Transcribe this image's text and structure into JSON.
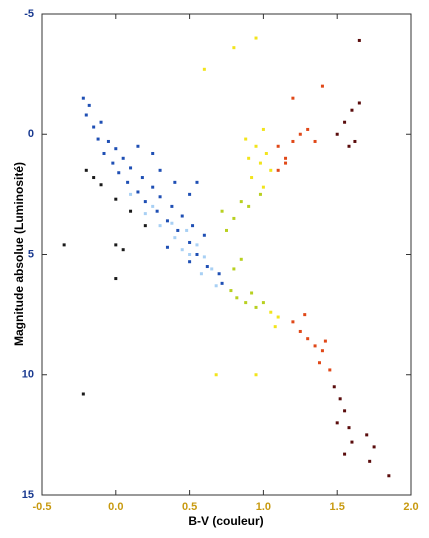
{
  "chart_data": {
    "type": "scatter",
    "x_label": "B-V (couleur)",
    "y_label": "Magnitude absolue (Luminosité)",
    "xlim": [
      -0.5,
      2.0
    ],
    "xticks": [
      -0.5,
      {
        "value": 0,
        "label": "0.0"
      },
      0.5,
      {
        "value": 1,
        "label": "1.0"
      },
      1.5,
      {
        "value": 2,
        "label": "2.0"
      }
    ],
    "ylim": [
      -5,
      15
    ],
    "yticks": [
      -5,
      0,
      5,
      10,
      15
    ],
    "y_reversed": true,
    "series": [
      {
        "color": "#1f4fb4",
        "x": [
          -0.22,
          -0.2,
          -0.18,
          -0.15,
          -0.12,
          -0.1,
          -0.08,
          -0.05,
          -0.02,
          0,
          0.02,
          0.05,
          0.08,
          0.1,
          0.15,
          0.18,
          0.2,
          0.25,
          0.28,
          0.3,
          0.35,
          0.38,
          0.42,
          0.45,
          0.5,
          0.52,
          0.55,
          0.6,
          0.62,
          0.5,
          0.35,
          0.7,
          0.72,
          0.25,
          0.15,
          0.3,
          0.4,
          0.5,
          0.55
        ],
        "values": [
          -1.5,
          -0.8,
          -1.2,
          -0.3,
          0.2,
          -0.5,
          0.8,
          0.3,
          1.2,
          0.6,
          1.6,
          1.0,
          2.0,
          1.4,
          2.4,
          1.8,
          2.8,
          2.2,
          3.2,
          2.6,
          3.6,
          3.0,
          4.0,
          3.4,
          4.5,
          3.8,
          5.0,
          4.2,
          5.5,
          5.3,
          4.7,
          5.8,
          6.2,
          0.8,
          0.5,
          1.5,
          2.0,
          2.5,
          2.0
        ]
      },
      {
        "color": "#a8d0f4",
        "x": [
          0.1,
          0.2,
          0.3,
          0.4,
          0.45,
          0.5,
          0.55,
          0.6,
          0.65,
          0.38,
          0.25,
          0.48,
          0.58,
          0.68
        ],
        "values": [
          2.5,
          3.3,
          3.8,
          4.3,
          4.8,
          5.0,
          4.6,
          5.1,
          5.6,
          3.7,
          3.0,
          4.0,
          5.8,
          6.3
        ]
      },
      {
        "color": "#1a1a1a",
        "x": [
          -0.2,
          -0.15,
          -0.1,
          0.0,
          0.1,
          0.05,
          0.0,
          0.0,
          -0.35,
          -0.22,
          0.2
        ],
        "values": [
          1.5,
          1.8,
          2.1,
          2.7,
          3.2,
          4.8,
          4.6,
          6.0,
          4.6,
          10.8,
          3.8
        ]
      },
      {
        "color": "#b8d020",
        "x": [
          0.75,
          0.8,
          0.78,
          0.82,
          0.85,
          0.88,
          0.9,
          0.92,
          0.95,
          0.98,
          1.0,
          0.85,
          0.8,
          0.72
        ],
        "values": [
          4.0,
          3.5,
          6.5,
          6.8,
          2.8,
          7.0,
          3.0,
          6.6,
          7.2,
          2.5,
          7.0,
          5.2,
          5.6,
          3.2
        ]
      },
      {
        "color": "#f2e41c",
        "x": [
          0.9,
          0.95,
          1.0,
          0.92,
          1.02,
          1.05,
          0.98,
          1.05,
          1.1,
          1.08,
          0.95,
          0.6,
          0.8,
          0.68,
          0.95,
          1.0,
          0.88
        ],
        "values": [
          1.0,
          0.5,
          -0.2,
          1.8,
          0.8,
          1.5,
          1.2,
          7.4,
          7.6,
          8.0,
          -4.0,
          -2.7,
          -3.6,
          10,
          10.0,
          2.2,
          0.2
        ]
      },
      {
        "color": "#e04818",
        "x": [
          1.1,
          1.15,
          1.2,
          1.25,
          1.3,
          1.35,
          1.1,
          1.2,
          1.25,
          1.3,
          1.35,
          1.4,
          1.42,
          1.38,
          1.45,
          1.28,
          1.15,
          1.4,
          1.2
        ],
        "values": [
          0.5,
          1.0,
          0.3,
          0.0,
          -0.2,
          0.3,
          1.5,
          7.8,
          8.2,
          8.5,
          8.8,
          9.0,
          8.6,
          9.5,
          9.8,
          7.5,
          1.2,
          -2.0,
          -1.5
        ]
      },
      {
        "color": "#5a0c0c",
        "x": [
          1.5,
          1.55,
          1.6,
          1.62,
          1.58,
          1.65,
          1.48,
          1.52,
          1.55,
          1.5,
          1.58,
          1.6,
          1.55,
          1.7,
          1.75,
          1.65,
          1.85,
          1.72
        ],
        "values": [
          0.0,
          -0.5,
          -1.0,
          0.3,
          0.5,
          -1.3,
          10.5,
          11.0,
          11.5,
          12.0,
          12.2,
          12.8,
          13.3,
          12.5,
          13.0,
          -3.9,
          14.2,
          13.6
        ]
      }
    ]
  }
}
